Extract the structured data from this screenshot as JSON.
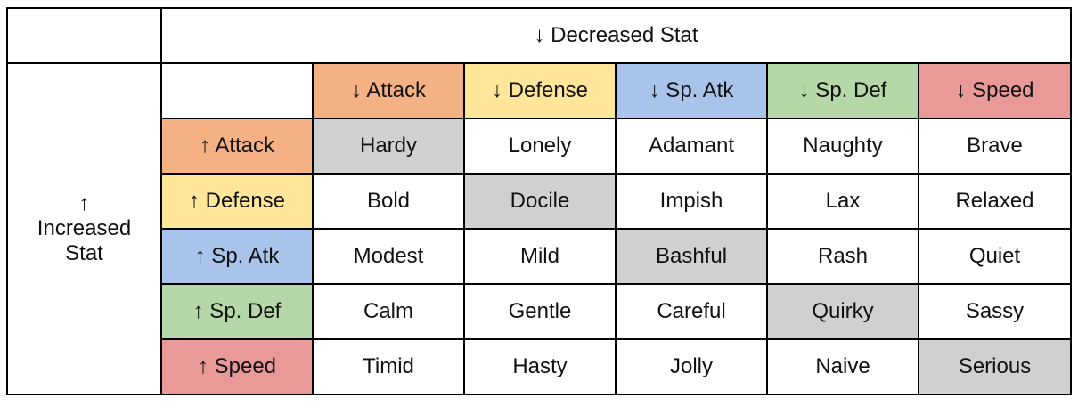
{
  "table": {
    "title": "↓ Decreased Stat",
    "row_label": "↑ Increased Stat",
    "columns": [
      "↓ Attack",
      "↓ Defense",
      "↓ Sp. Atk",
      "↓ Sp. Def",
      "↓ Speed"
    ],
    "rows": [
      {
        "label": "↑ Attack",
        "cells": [
          "Hardy",
          "Lonely",
          "Adamant",
          "Naughty",
          "Brave"
        ]
      },
      {
        "label": "↑ Defense",
        "cells": [
          "Bold",
          "Docile",
          "Impish",
          "Lax",
          "Relaxed"
        ]
      },
      {
        "label": "↑ Sp. Atk",
        "cells": [
          "Modest",
          "Mild",
          "Bashful",
          "Rash",
          "Quiet"
        ]
      },
      {
        "label": "↑ Sp. Def",
        "cells": [
          "Calm",
          "Gentle",
          "Careful",
          "Quirky",
          "Sassy"
        ]
      },
      {
        "label": "↑ Speed",
        "cells": [
          "Timid",
          "Hasty",
          "Jolly",
          "Naive",
          "Serious"
        ]
      }
    ]
  }
}
